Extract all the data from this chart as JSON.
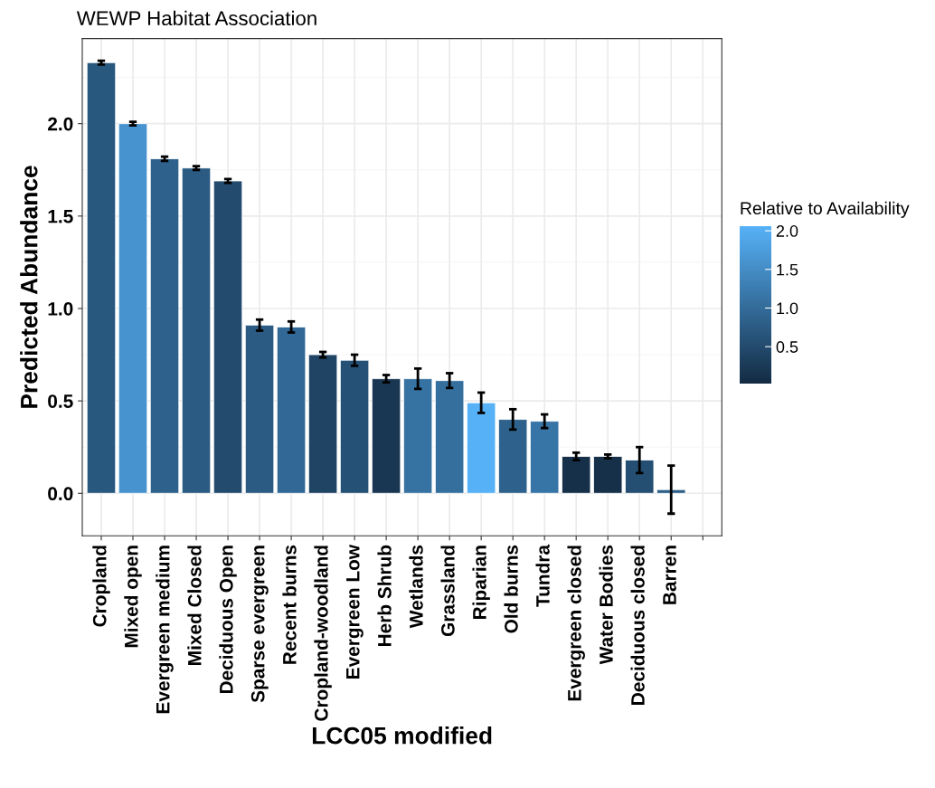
{
  "chart_data": {
    "type": "bar",
    "title": "WEWP Habitat Association",
    "xlabel": "LCC05 modified",
    "ylabel": "Predicted Abundance",
    "clabel": "Relative to Availability",
    "categories": [
      "Cropland",
      "Mixed open",
      "Evergreen medium",
      "Mixed Closed",
      "Deciduous Open",
      "Sparse evergreen",
      "Recent burns",
      "Cropland-woodland",
      "Evergreen Low",
      "Herb Shrub",
      "Wetlands",
      "Grassland",
      "Riparian",
      "Old burns",
      "Tundra",
      "Evergreen closed",
      "Water Bodies",
      "Deciduous closed",
      "Barren",
      null
    ],
    "values": [
      2.33,
      2.0,
      1.81,
      1.76,
      1.69,
      0.91,
      0.9,
      0.75,
      0.72,
      0.62,
      0.62,
      0.61,
      0.49,
      0.4,
      0.39,
      0.2,
      0.2,
      0.18,
      0.02,
      null
    ],
    "errors": [
      0.01,
      0.01,
      0.012,
      0.01,
      0.01,
      0.03,
      0.03,
      0.015,
      0.03,
      0.02,
      0.055,
      0.04,
      0.055,
      0.055,
      0.037,
      0.02,
      0.01,
      0.07,
      0.13,
      null
    ],
    "cvalues": [
      0.7,
      1.6,
      0.85,
      0.75,
      0.5,
      0.75,
      0.95,
      0.4,
      0.6,
      0.2,
      1.1,
      1.05,
      2.06,
      0.85,
      1.15,
      0.1,
      0.1,
      0.55,
      0.8,
      null
    ],
    "clim": [
      0.02,
      2.06
    ],
    "cticks": [
      0.5,
      {
        "value": 1,
        "label": "1.0"
      },
      1.5,
      {
        "value": 2,
        "label": "2.0"
      }
    ],
    "ylim": [
      -0.23,
      2.46
    ],
    "yticks": [
      {
        "value": 0,
        "label": "0.0"
      },
      0.5,
      {
        "value": 1,
        "label": "1.0"
      },
      1.5,
      {
        "value": 2,
        "label": "2.0"
      }
    ],
    "grid": true
  }
}
